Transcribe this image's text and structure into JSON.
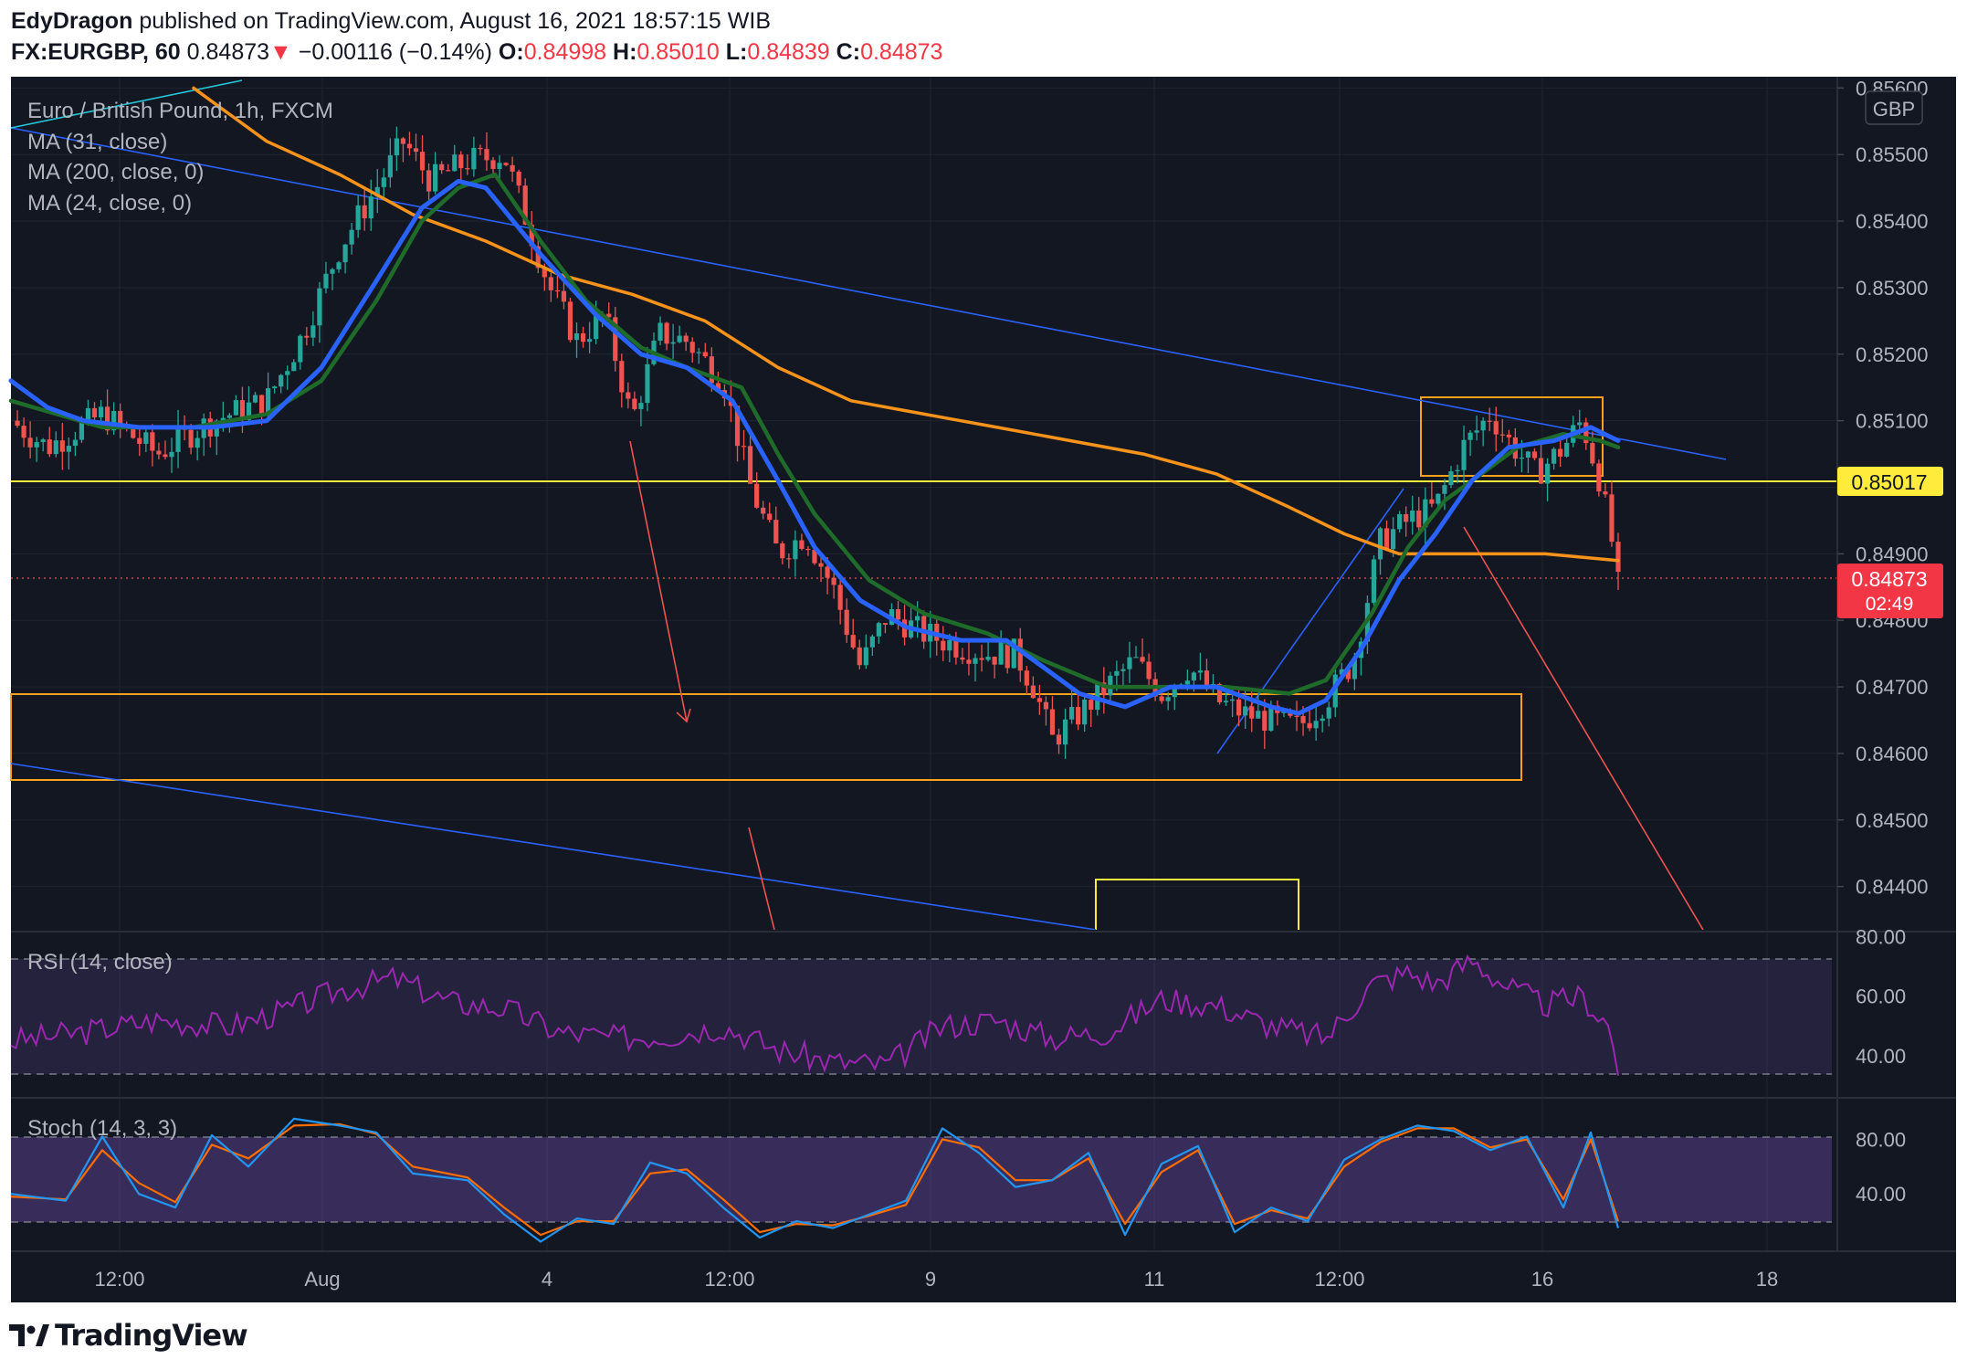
{
  "header": {
    "author": "EdyDragon",
    "published": "published on TradingView.com, August 16, 2021 18:57:15 WIB",
    "symbol": "FX:EURGBP, 60",
    "last": "0.84873",
    "arrow": "▼",
    "change": "−0.00116 (−0.14%)",
    "o_label": "O:",
    "o": "0.84998",
    "h_label": "H:",
    "h": "0.85010",
    "l_label": "L:",
    "l": "0.84839",
    "c_label": "C:",
    "c": "0.84873"
  },
  "legend": {
    "title": "Euro / British Pound, 1h, FXCM",
    "ma31": "MA (31, close)",
    "ma200": "MA (200, close, 0)",
    "ma24": "MA (24, close, 0)",
    "rsi": "RSI (14, close)",
    "stoch": "Stoch (14, 3, 3)"
  },
  "currency_badge": "GBP",
  "price_tag": {
    "value": "0.84873",
    "countdown": "02:49"
  },
  "level_tag": "0.85017",
  "footer": {
    "brand": "TradingView",
    "logo_icon": "tradingview-logo-icon"
  },
  "colors": {
    "background": "#131722",
    "grid": "#1f2430",
    "up": "#26a69a",
    "down": "#ef5350",
    "ma31": "#2962ff",
    "ma200": "#f7931a",
    "ma24": "#1f6b2a",
    "rsi": "#9c27b0",
    "stoch_k": "#2196f3",
    "stoch_d": "#ff6d00",
    "level": "#ffeb3b",
    "zone": "#f7a21a"
  },
  "chart_data": {
    "type": "candlestick",
    "time_axis_labels": [
      "12:00",
      "Aug",
      "4",
      "12:00",
      "9",
      "11",
      "12:00",
      "16",
      "18"
    ],
    "price_axis": {
      "ticks": [
        "0.85600",
        "0.85500",
        "0.85400",
        "0.85300",
        "0.85200",
        "0.85100",
        "0.85000",
        "0.84900",
        "0.84800",
        "0.84700",
        "0.84600",
        "0.84500",
        "0.84400"
      ],
      "range": [
        0.84335,
        0.85617
      ]
    },
    "last_price": 0.84873,
    "horizontal_level": 0.85017,
    "close_path": [
      [
        0,
        0.851
      ],
      [
        0.02,
        0.8506
      ],
      [
        0.05,
        0.8511
      ],
      [
        0.08,
        0.8505
      ],
      [
        0.11,
        0.851
      ],
      [
        0.14,
        0.8513
      ],
      [
        0.16,
        0.8523
      ],
      [
        0.18,
        0.8536
      ],
      [
        0.2,
        0.8545
      ],
      [
        0.215,
        0.8552
      ],
      [
        0.23,
        0.8546
      ],
      [
        0.25,
        0.8549
      ],
      [
        0.27,
        0.855
      ],
      [
        0.28,
        0.8542
      ],
      [
        0.295,
        0.853
      ],
      [
        0.31,
        0.8522
      ],
      [
        0.325,
        0.8526
      ],
      [
        0.34,
        0.851
      ],
      [
        0.355,
        0.8523
      ],
      [
        0.37,
        0.8522
      ],
      [
        0.39,
        0.8516
      ],
      [
        0.405,
        0.85
      ],
      [
        0.42,
        0.849
      ],
      [
        0.435,
        0.8493
      ],
      [
        0.45,
        0.8485
      ],
      [
        0.465,
        0.8473
      ],
      [
        0.48,
        0.8481
      ],
      [
        0.5,
        0.8478
      ],
      [
        0.52,
        0.8476
      ],
      [
        0.535,
        0.8475
      ],
      [
        0.55,
        0.8475
      ],
      [
        0.56,
        0.847
      ],
      [
        0.57,
        0.8462
      ],
      [
        0.585,
        0.8466
      ],
      [
        0.6,
        0.847
      ],
      [
        0.615,
        0.8474
      ],
      [
        0.63,
        0.8469
      ],
      [
        0.645,
        0.8473
      ],
      [
        0.66,
        0.8468
      ],
      [
        0.675,
        0.8466
      ],
      [
        0.69,
        0.8465
      ],
      [
        0.705,
        0.8464
      ],
      [
        0.72,
        0.8468
      ],
      [
        0.735,
        0.8474
      ],
      [
        0.75,
        0.8492
      ],
      [
        0.765,
        0.8495
      ],
      [
        0.78,
        0.8497
      ],
      [
        0.795,
        0.8506
      ],
      [
        0.81,
        0.8511
      ],
      [
        0.82,
        0.8507
      ],
      [
        0.835,
        0.8502
      ],
      [
        0.85,
        0.8506
      ],
      [
        0.86,
        0.851
      ],
      [
        0.87,
        0.8501
      ],
      [
        0.88,
        0.8487
      ]
    ],
    "moving_averages": {
      "ma24": [
        [
          0,
          0.8513
        ],
        [
          0.05,
          0.8509
        ],
        [
          0.1,
          0.8509
        ],
        [
          0.14,
          0.8511
        ],
        [
          0.17,
          0.8516
        ],
        [
          0.2,
          0.8528
        ],
        [
          0.225,
          0.854
        ],
        [
          0.245,
          0.8545
        ],
        [
          0.265,
          0.8547
        ],
        [
          0.29,
          0.8537
        ],
        [
          0.315,
          0.8528
        ],
        [
          0.345,
          0.8521
        ],
        [
          0.37,
          0.8518
        ],
        [
          0.4,
          0.8515
        ],
        [
          0.42,
          0.8505
        ],
        [
          0.44,
          0.8496
        ],
        [
          0.47,
          0.8486
        ],
        [
          0.5,
          0.8481
        ],
        [
          0.535,
          0.8478
        ],
        [
          0.565,
          0.8474
        ],
        [
          0.6,
          0.847
        ],
        [
          0.635,
          0.847
        ],
        [
          0.665,
          0.847
        ],
        [
          0.7,
          0.8469
        ],
        [
          0.72,
          0.8471
        ],
        [
          0.745,
          0.8481
        ],
        [
          0.765,
          0.8491
        ],
        [
          0.785,
          0.8498
        ],
        [
          0.805,
          0.8502
        ],
        [
          0.825,
          0.8506
        ],
        [
          0.85,
          0.8508
        ],
        [
          0.87,
          0.8507
        ],
        [
          0.88,
          0.8506
        ]
      ],
      "ma31": [
        [
          0,
          0.8516
        ],
        [
          0.02,
          0.8512
        ],
        [
          0.04,
          0.851
        ],
        [
          0.07,
          0.8509
        ],
        [
          0.11,
          0.8509
        ],
        [
          0.14,
          0.851
        ],
        [
          0.17,
          0.8518
        ],
        [
          0.2,
          0.8531
        ],
        [
          0.225,
          0.8542
        ],
        [
          0.245,
          0.8546
        ],
        [
          0.26,
          0.8545
        ],
        [
          0.29,
          0.8535
        ],
        [
          0.32,
          0.8526
        ],
        [
          0.345,
          0.852
        ],
        [
          0.37,
          0.8518
        ],
        [
          0.395,
          0.8513
        ],
        [
          0.42,
          0.8501
        ],
        [
          0.44,
          0.8491
        ],
        [
          0.465,
          0.8483
        ],
        [
          0.49,
          0.8479
        ],
        [
          0.52,
          0.8477
        ],
        [
          0.545,
          0.8477
        ],
        [
          0.565,
          0.8473
        ],
        [
          0.585,
          0.8469
        ],
        [
          0.61,
          0.8467
        ],
        [
          0.635,
          0.847
        ],
        [
          0.66,
          0.847
        ],
        [
          0.69,
          0.8467
        ],
        [
          0.705,
          0.8466
        ],
        [
          0.72,
          0.8468
        ],
        [
          0.74,
          0.8476
        ],
        [
          0.76,
          0.8486
        ],
        [
          0.78,
          0.8493
        ],
        [
          0.8,
          0.8501
        ],
        [
          0.82,
          0.8506
        ],
        [
          0.845,
          0.8507
        ],
        [
          0.865,
          0.8509
        ],
        [
          0.88,
          0.8507
        ]
      ],
      "ma200": [
        [
          0.1,
          0.856
        ],
        [
          0.14,
          0.8552
        ],
        [
          0.18,
          0.8547
        ],
        [
          0.22,
          0.8541
        ],
        [
          0.26,
          0.8537
        ],
        [
          0.3,
          0.8532
        ],
        [
          0.34,
          0.8529
        ],
        [
          0.38,
          0.8525
        ],
        [
          0.42,
          0.8518
        ],
        [
          0.46,
          0.8513
        ],
        [
          0.5,
          0.8511
        ],
        [
          0.54,
          0.8509
        ],
        [
          0.58,
          0.8507
        ],
        [
          0.62,
          0.8505
        ],
        [
          0.66,
          0.8502
        ],
        [
          0.7,
          0.8497
        ],
        [
          0.73,
          0.8493
        ],
        [
          0.76,
          0.849
        ],
        [
          0.8,
          0.849
        ],
        [
          0.84,
          0.849
        ],
        [
          0.88,
          0.8489
        ]
      ]
    },
    "rsi": {
      "ticks": [
        "80.00",
        "60.00",
        "40.00"
      ],
      "range": [
        26,
        81
      ],
      "band": [
        30,
        70
      ],
      "path": [
        [
          0,
          45
        ],
        [
          0.04,
          48
        ],
        [
          0.08,
          52
        ],
        [
          0.12,
          50
        ],
        [
          0.15,
          55
        ],
        [
          0.18,
          62
        ],
        [
          0.21,
          66
        ],
        [
          0.24,
          58
        ],
        [
          0.27,
          56
        ],
        [
          0.3,
          48
        ],
        [
          0.33,
          46
        ],
        [
          0.36,
          47
        ],
        [
          0.39,
          50
        ],
        [
          0.42,
          42
        ],
        [
          0.45,
          38
        ],
        [
          0.48,
          37
        ],
        [
          0.51,
          50
        ],
        [
          0.54,
          52
        ],
        [
          0.57,
          46
        ],
        [
          0.6,
          48
        ],
        [
          0.63,
          59
        ],
        [
          0.66,
          57
        ],
        [
          0.69,
          50
        ],
        [
          0.72,
          46
        ],
        [
          0.745,
          64
        ],
        [
          0.765,
          68
        ],
        [
          0.78,
          64
        ],
        [
          0.8,
          72
        ],
        [
          0.82,
          63
        ],
        [
          0.84,
          57
        ],
        [
          0.86,
          60
        ],
        [
          0.875,
          50
        ],
        [
          0.88,
          36
        ]
      ]
    },
    "stoch": {
      "ticks": [
        "80.00",
        "40.00"
      ],
      "range": [
        -2,
        109
      ],
      "band": [
        20,
        80
      ],
      "k": [
        [
          0,
          40
        ],
        [
          0.03,
          35
        ],
        [
          0.05,
          82
        ],
        [
          0.07,
          40
        ],
        [
          0.09,
          30
        ],
        [
          0.11,
          83
        ],
        [
          0.13,
          60
        ],
        [
          0.155,
          95
        ],
        [
          0.18,
          90
        ],
        [
          0.2,
          85
        ],
        [
          0.22,
          55
        ],
        [
          0.25,
          50
        ],
        [
          0.27,
          25
        ],
        [
          0.29,
          5
        ],
        [
          0.31,
          22
        ],
        [
          0.33,
          18
        ],
        [
          0.35,
          63
        ],
        [
          0.37,
          55
        ],
        [
          0.39,
          30
        ],
        [
          0.41,
          8
        ],
        [
          0.43,
          20
        ],
        [
          0.45,
          15
        ],
        [
          0.47,
          25
        ],
        [
          0.49,
          35
        ],
        [
          0.51,
          88
        ],
        [
          0.53,
          70
        ],
        [
          0.55,
          45
        ],
        [
          0.57,
          50
        ],
        [
          0.59,
          70
        ],
        [
          0.61,
          10
        ],
        [
          0.63,
          62
        ],
        [
          0.65,
          75
        ],
        [
          0.67,
          12
        ],
        [
          0.69,
          30
        ],
        [
          0.71,
          20
        ],
        [
          0.73,
          65
        ],
        [
          0.75,
          80
        ],
        [
          0.77,
          90
        ],
        [
          0.79,
          86
        ],
        [
          0.81,
          72
        ],
        [
          0.83,
          82
        ],
        [
          0.85,
          30
        ],
        [
          0.865,
          85
        ],
        [
          0.88,
          15
        ]
      ],
      "d": [
        [
          0,
          38
        ],
        [
          0.03,
          36
        ],
        [
          0.05,
          72
        ],
        [
          0.07,
          48
        ],
        [
          0.09,
          34
        ],
        [
          0.11,
          76
        ],
        [
          0.13,
          66
        ],
        [
          0.155,
          90
        ],
        [
          0.18,
          91
        ],
        [
          0.2,
          84
        ],
        [
          0.22,
          60
        ],
        [
          0.25,
          52
        ],
        [
          0.27,
          30
        ],
        [
          0.29,
          10
        ],
        [
          0.31,
          20
        ],
        [
          0.33,
          20
        ],
        [
          0.35,
          55
        ],
        [
          0.37,
          58
        ],
        [
          0.39,
          36
        ],
        [
          0.41,
          12
        ],
        [
          0.43,
          18
        ],
        [
          0.45,
          17
        ],
        [
          0.47,
          24
        ],
        [
          0.49,
          32
        ],
        [
          0.51,
          80
        ],
        [
          0.53,
          74
        ],
        [
          0.55,
          50
        ],
        [
          0.57,
          50
        ],
        [
          0.59,
          66
        ],
        [
          0.61,
          18
        ],
        [
          0.63,
          56
        ],
        [
          0.65,
          72
        ],
        [
          0.67,
          18
        ],
        [
          0.69,
          28
        ],
        [
          0.71,
          22
        ],
        [
          0.73,
          60
        ],
        [
          0.75,
          78
        ],
        [
          0.77,
          88
        ],
        [
          0.79,
          88
        ],
        [
          0.81,
          74
        ],
        [
          0.83,
          80
        ],
        [
          0.85,
          36
        ],
        [
          0.865,
          80
        ],
        [
          0.88,
          20
        ]
      ]
    }
  }
}
